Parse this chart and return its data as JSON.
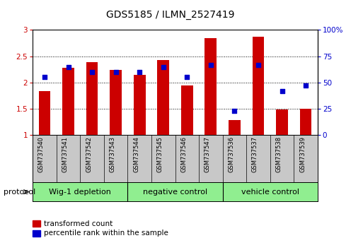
{
  "title": "GDS5185 / ILMN_2527419",
  "samples": [
    "GSM737540",
    "GSM737541",
    "GSM737542",
    "GSM737543",
    "GSM737544",
    "GSM737545",
    "GSM737546",
    "GSM737547",
    "GSM737536",
    "GSM737537",
    "GSM737538",
    "GSM737539"
  ],
  "red_values": [
    1.84,
    2.28,
    2.39,
    2.24,
    2.15,
    2.43,
    1.95,
    2.84,
    1.29,
    2.87,
    1.49,
    1.5
  ],
  "blue_values": [
    55,
    65,
    60,
    60,
    60,
    65,
    55,
    67,
    23,
    67,
    42,
    47
  ],
  "groups": [
    {
      "label": "Wig-1 depletion",
      "start": 0,
      "end": 3
    },
    {
      "label": "negative control",
      "start": 4,
      "end": 7
    },
    {
      "label": "vehicle control",
      "start": 8,
      "end": 11
    }
  ],
  "ylim": [
    1,
    3
  ],
  "yticks_left": [
    1,
    1.5,
    2,
    2.5,
    3
  ],
  "yticks_right": [
    0,
    25,
    50,
    75,
    100
  ],
  "bar_color": "#cc0000",
  "dot_color": "#0000cc",
  "bar_width": 0.5,
  "tick_area_bg": "#c8c8c8",
  "group_bg": "#90ee90",
  "legend_red_label": "transformed count",
  "legend_blue_label": "percentile rank within the sample",
  "protocol_label": "protocol"
}
